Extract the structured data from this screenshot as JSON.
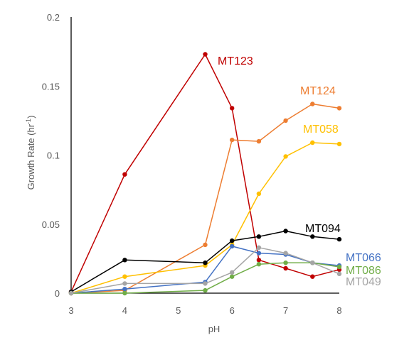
{
  "chart_data": {
    "type": "line",
    "xlabel": "pH",
    "ylabel": {
      "main": "Growth Rate (hr",
      "sup": "-1",
      "close": ")"
    },
    "xlim": [
      3,
      8
    ],
    "ylim": [
      0,
      0.2
    ],
    "xticks": [
      "3",
      "4",
      "5",
      "6",
      "7",
      "8"
    ],
    "yticks": [
      "0",
      "0.05",
      "0.1",
      "0.15",
      "0.2"
    ],
    "grid": false,
    "series": [
      {
        "name": "MT123",
        "color": "#C00000",
        "x": [
          3,
          4,
          5.5,
          6,
          6.5,
          7,
          7.5,
          8
        ],
        "y": [
          0.001,
          0.086,
          0.173,
          0.134,
          0.024,
          0.018,
          0.012,
          0.017
        ]
      },
      {
        "name": "MT124",
        "color": "#ED7D31",
        "x": [
          3,
          4,
          5.5,
          6,
          6.5,
          7,
          7.5,
          8
        ],
        "y": [
          0.0,
          0.002,
          0.035,
          0.111,
          0.11,
          0.125,
          0.137,
          0.134
        ]
      },
      {
        "name": "MT058",
        "color": "#FFC000",
        "x": [
          3,
          4,
          5.5,
          6,
          6.5,
          7,
          7.5,
          8
        ],
        "y": [
          0.0,
          0.012,
          0.02,
          0.035,
          0.072,
          0.099,
          0.109,
          0.108
        ]
      },
      {
        "name": "MT094",
        "color": "#000000",
        "x": [
          3,
          4,
          5.5,
          6,
          6.5,
          7,
          7.5,
          8
        ],
        "y": [
          0.001,
          0.024,
          0.022,
          0.038,
          0.041,
          0.045,
          0.041,
          0.039
        ]
      },
      {
        "name": "MT066",
        "color": "#4472C4",
        "x": [
          3,
          4,
          5.5,
          6,
          6.5,
          7,
          7.5,
          8
        ],
        "y": [
          0.0,
          0.003,
          0.008,
          0.034,
          0.029,
          0.028,
          0.022,
          0.02
        ]
      },
      {
        "name": "MT086",
        "color": "#70AD47",
        "x": [
          3,
          4,
          5.5,
          6,
          6.5,
          7,
          7.5,
          8
        ],
        "y": [
          0.0,
          0.0,
          0.002,
          0.012,
          0.021,
          0.022,
          0.022,
          0.019
        ]
      },
      {
        "name": "MT049",
        "color": "#A5A5A5",
        "x": [
          3,
          4,
          5.5,
          6,
          6.5,
          7,
          7.5,
          8
        ],
        "y": [
          0.0,
          0.007,
          0.007,
          0.015,
          0.033,
          0.029,
          0.022,
          0.014
        ]
      }
    ]
  }
}
